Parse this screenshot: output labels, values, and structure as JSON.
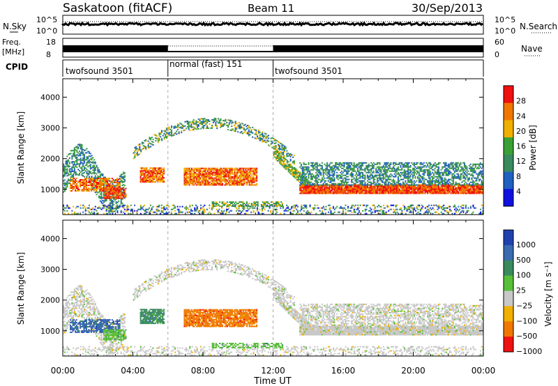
{
  "header": {
    "station": "Saskatoon (fitACF)",
    "beam": "Beam 11",
    "date": "30/Sep/2013"
  },
  "panels": {
    "nsky": {
      "label": "N.Sky",
      "right_label": "N.Search",
      "ticks_left": [
        "10^5",
        "10^0"
      ],
      "ticks_right": [
        "10^5",
        "10^0"
      ]
    },
    "freq": {
      "label_line1": "Freq.",
      "label_line2": "[MHz]",
      "right_label": "Nave",
      "ticks_left": [
        "18",
        "8"
      ],
      "ticks_right": [
        "60",
        "0"
      ]
    },
    "cpid": {
      "label": "CPID",
      "segments": [
        {
          "label": "twofsound 3501",
          "start": 0,
          "end": 6
        },
        {
          "label": "normal (fast) 151",
          "start": 6,
          "end": 12
        },
        {
          "label": "twofsound 3501",
          "start": 12,
          "end": 24
        }
      ]
    }
  },
  "chart_data": [
    {
      "type": "heatmap",
      "title": "",
      "xlabel": "Time UT",
      "ylabel": "Slant Range [km]",
      "xlim": [
        0,
        24
      ],
      "ylim": [
        180,
        4600
      ],
      "x_ticks": [
        "00:00",
        "04:00",
        "08:00",
        "12:00",
        "16:00",
        "20:00",
        "00:00"
      ],
      "y_ticks": [
        1000,
        2000,
        3000,
        4000
      ],
      "colorbar": {
        "label": "Power [dB]",
        "ticks": [
          4,
          8,
          12,
          16,
          20,
          24,
          28
        ],
        "range": [
          0,
          32
        ],
        "colors": [
          "#1010e0",
          "#2060c0",
          "#3a8a5e",
          "#3aa036",
          "#f0b000",
          "#f07800",
          "#f01010"
        ]
      }
    },
    {
      "type": "heatmap",
      "title": "",
      "xlabel": "Time UT",
      "ylabel": "Slant Range [km]",
      "xlim": [
        0,
        24
      ],
      "ylim": [
        180,
        4600
      ],
      "x_ticks": [
        "00:00",
        "04:00",
        "08:00",
        "12:00",
        "16:00",
        "20:00",
        "00:00"
      ],
      "y_ticks": [
        1000,
        2000,
        3000,
        4000
      ],
      "colorbar": {
        "label": "Velocity [m s⁻¹]",
        "ticks": [
          "1000",
          "500",
          "100",
          "25",
          "−25",
          "−100",
          "−500",
          "−1000"
        ],
        "colors": [
          "#2040b0",
          "#3a6ab0",
          "#3a8a5e",
          "#58c038",
          "#c8c8c8",
          "#f0b000",
          "#f07800",
          "#f01010"
        ]
      }
    }
  ]
}
